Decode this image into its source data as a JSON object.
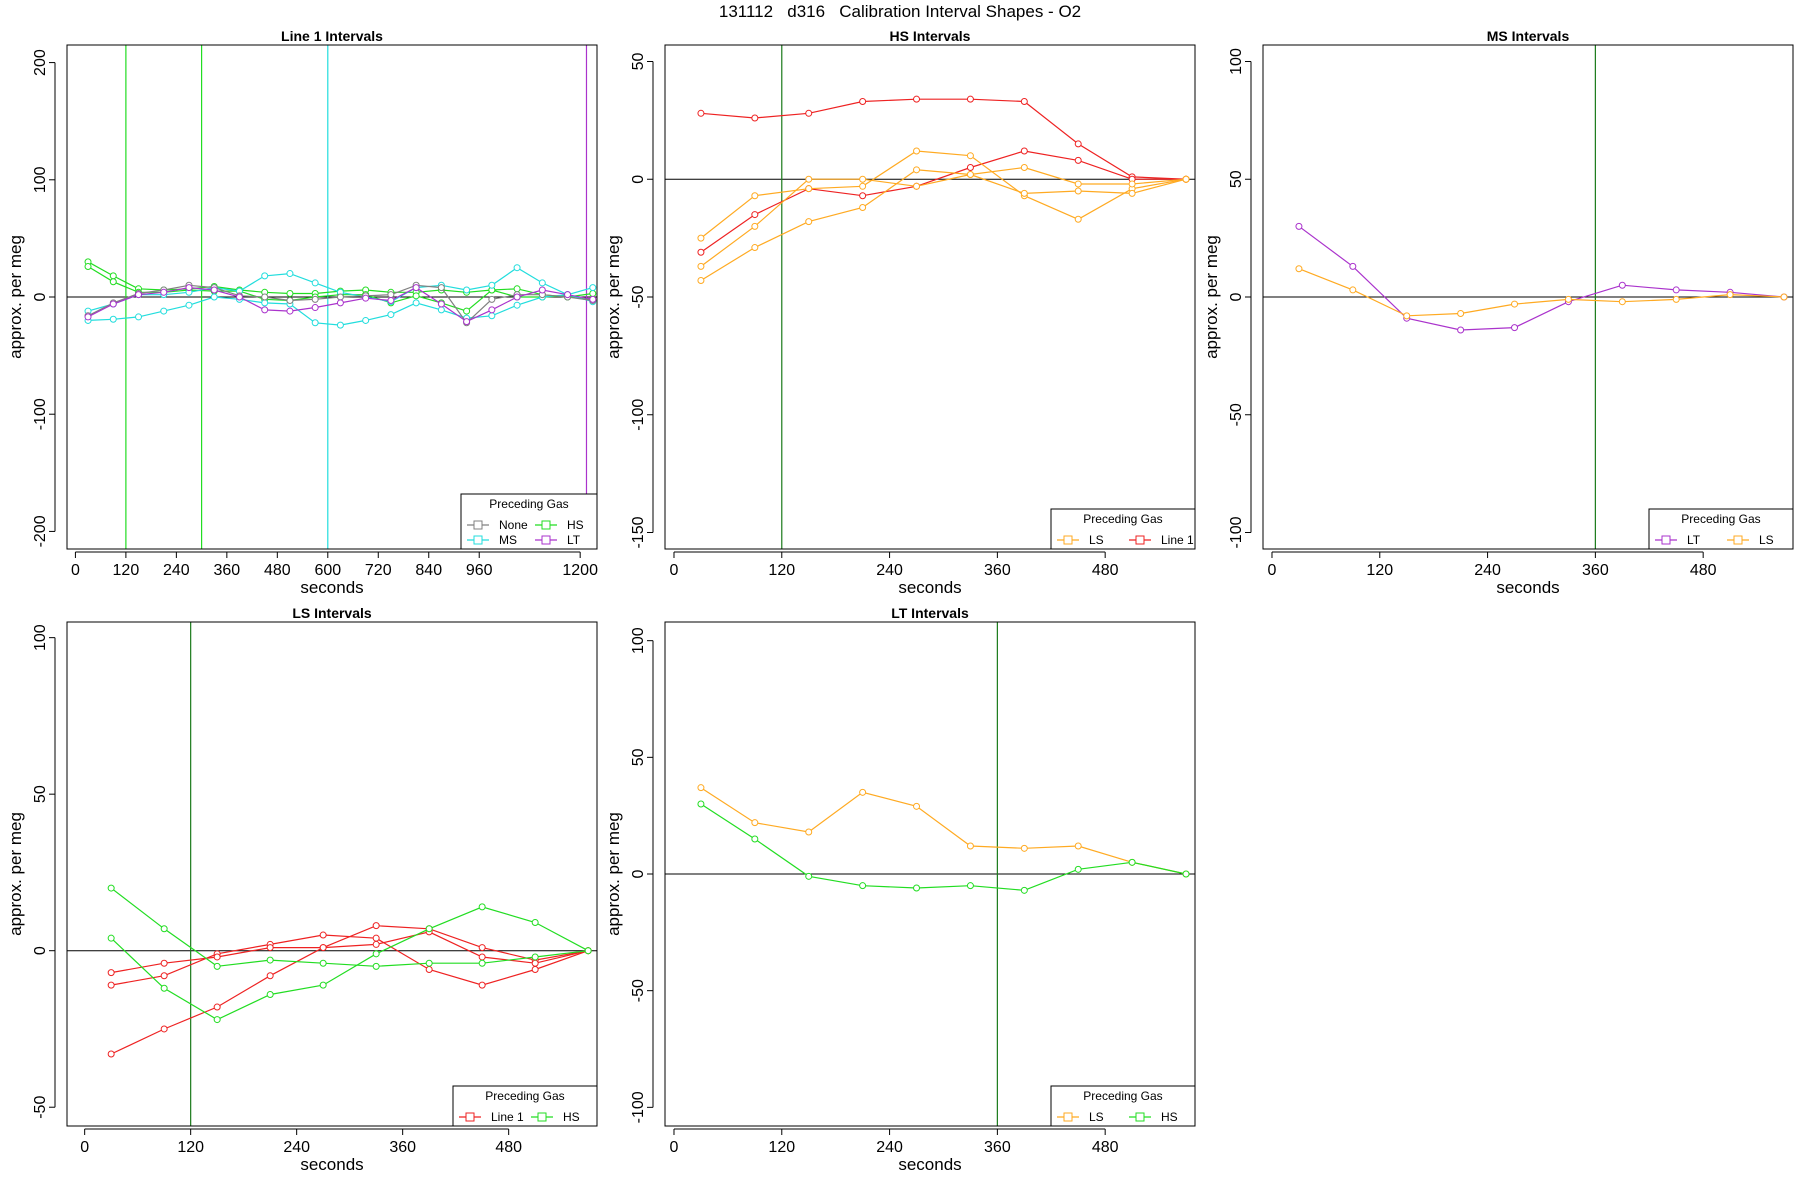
{
  "title": "131112   d316   Calibration Interval Shapes - O2",
  "colors": {
    "None": "#808080",
    "HS": "#22dd22",
    "MS": "#22dddd",
    "LT": "#aa33cc",
    "LS": "#ffaa22",
    "Line 1": "#ee2222",
    "vline": "#1a7a1a"
  },
  "chart_data": [
    {
      "id": "line1",
      "type": "line",
      "title": "Line 1 Intervals",
      "xlabel": "seconds",
      "ylabel": "approx. per meg",
      "xlim": [
        -20,
        1240
      ],
      "ylim": [
        -215,
        215
      ],
      "xticks": [
        0,
        120,
        240,
        360,
        480,
        600,
        720,
        840,
        960,
        1200
      ],
      "yticks": [
        -200,
        -100,
        0,
        100,
        200
      ],
      "legend_title": "Preceding Gas",
      "legend_items": [
        "None",
        "HS",
        "MS",
        "LT"
      ],
      "vlines": [
        {
          "x": 120,
          "gas": "HS"
        },
        {
          "x": 300,
          "gas": "HS"
        },
        {
          "x": 600,
          "gas": "MS"
        },
        {
          "x": 1215,
          "gas": "LT"
        }
      ],
      "series": [
        {
          "gas": "HS",
          "x": [
            30,
            90,
            150,
            210,
            270,
            330,
            390,
            450,
            510,
            570,
            630,
            690,
            750,
            810,
            870,
            930,
            990,
            1050,
            1110,
            1170,
            1230
          ],
          "y": [
            30,
            18,
            7,
            6,
            7,
            9,
            6,
            4,
            3,
            3,
            5,
            6,
            4,
            4,
            6,
            4,
            6,
            7,
            2,
            0,
            3
          ]
        },
        {
          "gas": "HS",
          "x": [
            30,
            90,
            150,
            210,
            270,
            330,
            390,
            450,
            510,
            570,
            630,
            690,
            750,
            810,
            870,
            930,
            990,
            1050,
            1110,
            1170,
            1230
          ],
          "y": [
            26,
            13,
            4,
            4,
            6,
            5,
            5,
            -2,
            -3,
            0,
            2,
            2,
            -5,
            1,
            -5,
            -12,
            6,
            0,
            0,
            1,
            -3
          ]
        },
        {
          "gas": "MS",
          "x": [
            30,
            90,
            150,
            210,
            270,
            330,
            390,
            450,
            510,
            570,
            630,
            690,
            750,
            810,
            870,
            930,
            990,
            1050,
            1110,
            1170,
            1230
          ],
          "y": [
            -12,
            -6,
            2,
            2,
            4,
            8,
            5,
            18,
            20,
            12,
            4,
            0,
            -4,
            8,
            10,
            6,
            10,
            25,
            12,
            2,
            8
          ]
        },
        {
          "gas": "MS",
          "x": [
            30,
            90,
            150,
            210,
            270,
            330,
            390,
            450,
            510,
            570,
            630,
            690,
            750,
            810,
            870,
            930,
            990,
            1050,
            1110,
            1170,
            1230
          ],
          "y": [
            -20,
            -19,
            -17,
            -12,
            -7,
            0,
            -2,
            -5,
            -6,
            -22,
            -24,
            -20,
            -15,
            -5,
            -11,
            -18,
            -16,
            -7,
            0,
            2,
            -4
          ]
        },
        {
          "gas": "None",
          "x": [
            30,
            90,
            150,
            210,
            270,
            330,
            390,
            450,
            510,
            570,
            630,
            690,
            750,
            810,
            870,
            930,
            990,
            1050,
            1110,
            1170,
            1230
          ],
          "y": [
            -16,
            -5,
            3,
            6,
            10,
            8,
            1,
            0,
            -3,
            -2,
            0,
            1,
            2,
            10,
            8,
            -22,
            -2,
            2,
            2,
            0,
            -3
          ]
        },
        {
          "gas": "LT",
          "x": [
            30,
            90,
            150,
            210,
            270,
            330,
            390,
            450,
            510,
            570,
            630,
            690,
            750,
            810,
            870,
            930,
            990,
            1050,
            1110,
            1170,
            1230
          ],
          "y": [
            -17,
            -6,
            2,
            4,
            8,
            6,
            0,
            -11,
            -12,
            -9,
            -5,
            -1,
            -3,
            8,
            -6,
            -21,
            -11,
            0,
            6,
            2,
            -2
          ]
        }
      ]
    },
    {
      "id": "hs",
      "type": "line",
      "title": "HS Intervals",
      "xlabel": "seconds",
      "ylabel": "approx. per meg",
      "xlim": [
        -10,
        580
      ],
      "ylim": [
        -157,
        57
      ],
      "xticks": [
        0,
        120,
        240,
        360,
        480
      ],
      "yticks": [
        -150,
        -100,
        -50,
        0,
        50
      ],
      "legend_title": "Preceding Gas",
      "legend_items": [
        "LS",
        "Line 1"
      ],
      "vlines": [
        {
          "x": 120,
          "gas": "vline"
        }
      ],
      "series": [
        {
          "gas": "Line 1",
          "x": [
            30,
            90,
            150,
            210,
            270,
            330,
            390,
            450,
            510,
            570
          ],
          "y": [
            28,
            26,
            28,
            33,
            34,
            34,
            33,
            15,
            1,
            0
          ]
        },
        {
          "gas": "Line 1",
          "x": [
            30,
            90,
            150,
            210,
            270,
            330,
            390,
            450,
            510,
            570
          ],
          "y": [
            -31,
            -15,
            -4,
            -7,
            -3,
            5,
            12,
            8,
            0,
            0
          ]
        },
        {
          "gas": "LS",
          "x": [
            30,
            90,
            150,
            210,
            270,
            330,
            390,
            450,
            510,
            570
          ],
          "y": [
            -25,
            -7,
            -4,
            -3,
            12,
            10,
            -7,
            -17,
            -4,
            0
          ]
        },
        {
          "gas": "LS",
          "x": [
            30,
            90,
            150,
            210,
            270,
            330,
            390,
            450,
            510,
            570
          ],
          "y": [
            -37,
            -20,
            0,
            0,
            -3,
            2,
            5,
            -2,
            -2,
            0
          ]
        },
        {
          "gas": "LS",
          "x": [
            30,
            90,
            150,
            210,
            270,
            330,
            390,
            450,
            510,
            570
          ],
          "y": [
            -43,
            -29,
            -18,
            -12,
            4,
            2,
            -6,
            -5,
            -6,
            0
          ]
        }
      ]
    },
    {
      "id": "ms",
      "type": "line",
      "title": "MS Intervals",
      "xlabel": "seconds",
      "ylabel": "approx. per meg",
      "xlim": [
        -10,
        580
      ],
      "ylim": [
        -107,
        107
      ],
      "xticks": [
        0,
        120,
        240,
        360,
        480
      ],
      "yticks": [
        -100,
        -50,
        0,
        50,
        100
      ],
      "legend_title": "Preceding Gas",
      "legend_items": [
        "LT",
        "LS"
      ],
      "vlines": [
        {
          "x": 360,
          "gas": "vline"
        }
      ],
      "series": [
        {
          "gas": "LT",
          "x": [
            30,
            90,
            150,
            210,
            270,
            330,
            390,
            450,
            510,
            570
          ],
          "y": [
            30,
            13,
            -9,
            -14,
            -13,
            -2,
            5,
            3,
            2,
            0
          ]
        },
        {
          "gas": "LS",
          "x": [
            30,
            90,
            150,
            210,
            270,
            330,
            390,
            450,
            510,
            570
          ],
          "y": [
            12,
            3,
            -8,
            -7,
            -3,
            -1,
            -2,
            -1,
            1,
            0
          ]
        }
      ]
    },
    {
      "id": "ls",
      "type": "line",
      "title": "LS Intervals",
      "xlabel": "seconds",
      "ylabel": "approx. per meg",
      "xlim": [
        -20,
        580
      ],
      "ylim": [
        -56,
        105
      ],
      "xticks": [
        0,
        120,
        240,
        360,
        480
      ],
      "yticks": [
        -50,
        0,
        50,
        100
      ],
      "legend_title": "Preceding Gas",
      "legend_items": [
        "Line 1",
        "HS"
      ],
      "vlines": [
        {
          "x": 120,
          "gas": "vline"
        }
      ],
      "series": [
        {
          "gas": "Line 1",
          "x": [
            30,
            90,
            150,
            210,
            270,
            330,
            390,
            450,
            510,
            570
          ],
          "y": [
            -33,
            -25,
            -18,
            -8,
            1,
            8,
            7,
            1,
            -3,
            0
          ]
        },
        {
          "gas": "Line 1",
          "x": [
            30,
            90,
            150,
            210,
            270,
            330,
            390,
            450,
            510,
            570
          ],
          "y": [
            -11,
            -8,
            -1,
            2,
            5,
            4,
            -6,
            -11,
            -6,
            0
          ]
        },
        {
          "gas": "Line 1",
          "x": [
            30,
            90,
            150,
            210,
            270,
            330,
            390,
            450,
            510,
            570
          ],
          "y": [
            -7,
            -4,
            -2,
            1,
            1,
            2,
            6,
            -2,
            -4,
            0
          ]
        },
        {
          "gas": "HS",
          "x": [
            30,
            90,
            150,
            210,
            270,
            330,
            390,
            450,
            510,
            570
          ],
          "y": [
            20,
            7,
            -5,
            -3,
            -4,
            -5,
            -4,
            -4,
            -2,
            0
          ]
        },
        {
          "gas": "HS",
          "x": [
            30,
            90,
            150,
            210,
            270,
            330,
            390,
            450,
            510,
            570
          ],
          "y": [
            4,
            -12,
            -22,
            -14,
            -11,
            -1,
            7,
            14,
            9,
            0
          ]
        }
      ]
    },
    {
      "id": "lt",
      "type": "line",
      "title": "LT Intervals",
      "xlabel": "seconds",
      "ylabel": "approx. per meg",
      "xlim": [
        -10,
        580
      ],
      "ylim": [
        -108,
        108
      ],
      "xticks": [
        0,
        120,
        240,
        360,
        480
      ],
      "yticks": [
        -100,
        -50,
        0,
        50,
        100
      ],
      "legend_title": "Preceding Gas",
      "legend_items": [
        "LS",
        "HS"
      ],
      "vlines": [
        {
          "x": 360,
          "gas": "vline"
        }
      ],
      "series": [
        {
          "gas": "LS",
          "x": [
            30,
            90,
            150,
            210,
            270,
            330,
            390,
            450,
            510,
            570
          ],
          "y": [
            37,
            22,
            18,
            35,
            29,
            12,
            11,
            12,
            5,
            0
          ]
        },
        {
          "gas": "HS",
          "x": [
            30,
            90,
            150,
            210,
            270,
            330,
            390,
            450,
            510,
            570
          ],
          "y": [
            30,
            15,
            -1,
            -5,
            -6,
            -5,
            -7,
            2,
            5,
            0
          ]
        }
      ]
    }
  ]
}
